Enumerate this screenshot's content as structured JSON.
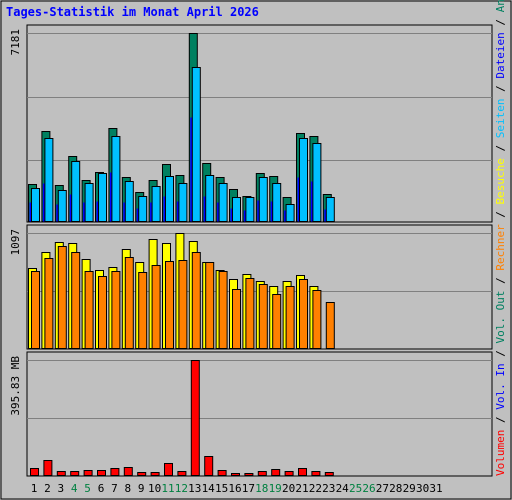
{
  "chart_data": {
    "type": "bar",
    "title": "Tages-Statistik im Monat April 2026",
    "x": [
      "1",
      "2",
      "3",
      "4",
      "5",
      "6",
      "7",
      "8",
      "9",
      "10",
      "11",
      "12",
      "13",
      "14",
      "15",
      "16",
      "17",
      "18",
      "19",
      "20",
      "21",
      "22",
      "23",
      "24",
      "25",
      "26",
      "27",
      "28",
      "29",
      "30",
      "31"
    ],
    "weekend_days": [
      "4",
      "5",
      "11",
      "12",
      "18",
      "19",
      "25",
      "26"
    ],
    "panels": [
      {
        "label": "7181",
        "ylim": [
          0,
          7181
        ],
        "series": [
          {
            "name": "Anfragen",
            "color": "#008060",
            "values": [
              1450,
              3450,
              1400,
              2500,
              1580,
              1900,
              3580,
              1700,
              1150,
              1580,
              2200,
              1780,
              7181,
              2250,
              1700,
              1250,
              1000,
              1880,
              1750,
              950,
              3400,
              3250,
              1050,
              0,
              0,
              0,
              0,
              0,
              0,
              0,
              0
            ]
          },
          {
            "name": "Dateien",
            "color": "#0000ff",
            "values": [
              750,
              1500,
              700,
              1050,
              750,
              800,
              1900,
              750,
              550,
              750,
              1000,
              800,
              4000,
              1000,
              750,
              550,
              450,
              850,
              800,
              450,
              1700,
              1550,
              500,
              0,
              0,
              0,
              0,
              0,
              0,
              0,
              0
            ]
          },
          {
            "name": "Seiten",
            "color": "#00c0ff",
            "values": [
              1300,
              3200,
              1220,
              2300,
              1480,
              1850,
              3250,
              1560,
              1000,
              1350,
              1750,
              1500,
              5900,
              1800,
              1500,
              950,
              950,
              1700,
              1500,
              700,
              3200,
              3000,
              950,
              0,
              0,
              0,
              0,
              0,
              0,
              0,
              0
            ]
          }
        ]
      },
      {
        "label": "1097",
        "ylim": [
          0,
          1097
        ],
        "series": [
          {
            "name": "Besuche",
            "color": "#ffff00",
            "values": [
              770,
              920,
              1010,
              1000,
              850,
              750,
              780,
              950,
              820,
              1040,
              1000,
              1100,
              1020,
              820,
              750,
              660,
              710,
              640,
              600,
              640,
              700,
              600,
              0,
              0,
              0,
              0,
              0,
              0,
              0,
              0,
              0
            ]
          },
          {
            "name": "Rechner",
            "color": "#ff8000",
            "values": [
              740,
              860,
              970,
              920,
              740,
              690,
              740,
              870,
              730,
              790,
              830,
              840,
              920,
              820,
              740,
              570,
              670,
              610,
              520,
              600,
              660,
              560,
              440,
              0,
              0,
              0,
              0,
              0,
              0,
              0,
              0
            ]
          }
        ],
        "values_by_day_note": ""
      },
      {
        "label": "395.83 MB",
        "ylim": [
          0,
          395.83
        ],
        "series": [
          {
            "name": "Volumen",
            "color": "#ff0000",
            "values": [
              28,
              55,
              18,
              16,
              20,
              20,
              28,
              30,
              15,
              15,
              44,
              18,
              395.83,
              68,
              20,
              10,
              10,
              18,
              25,
              18,
              28,
              18,
              15,
              0,
              0,
              0,
              0,
              0,
              0,
              0,
              0
            ]
          }
        ]
      }
    ],
    "side_labels": [
      {
        "text": "Volumen",
        "color": "#ff0000"
      },
      {
        "text": " / ",
        "color": "#000000"
      },
      {
        "text": "Vol. In",
        "color": "#0000ff"
      },
      {
        "text": " / ",
        "color": "#000000"
      },
      {
        "text": "Vol. Out",
        "color": "#008060"
      },
      {
        "text": " / ",
        "color": "#000000"
      },
      {
        "text": "Rechner",
        "color": "#ff8000"
      },
      {
        "text": " / ",
        "color": "#000000"
      },
      {
        "text": "Besuche",
        "color": "#ffff00"
      },
      {
        "text": " / ",
        "color": "#000000"
      },
      {
        "text": "Seiten",
        "color": "#00c0ff"
      },
      {
        "text": " / ",
        "color": "#000000"
      },
      {
        "text": "Dateien",
        "color": "#0000ff"
      },
      {
        "text": " / ",
        "color": "#000000"
      },
      {
        "text": "Anfragen",
        "color": "#008060"
      }
    ],
    "colors": {
      "background": "#c0c0c0",
      "weekday_label": "#000000",
      "weekend_label": "#008040"
    }
  }
}
